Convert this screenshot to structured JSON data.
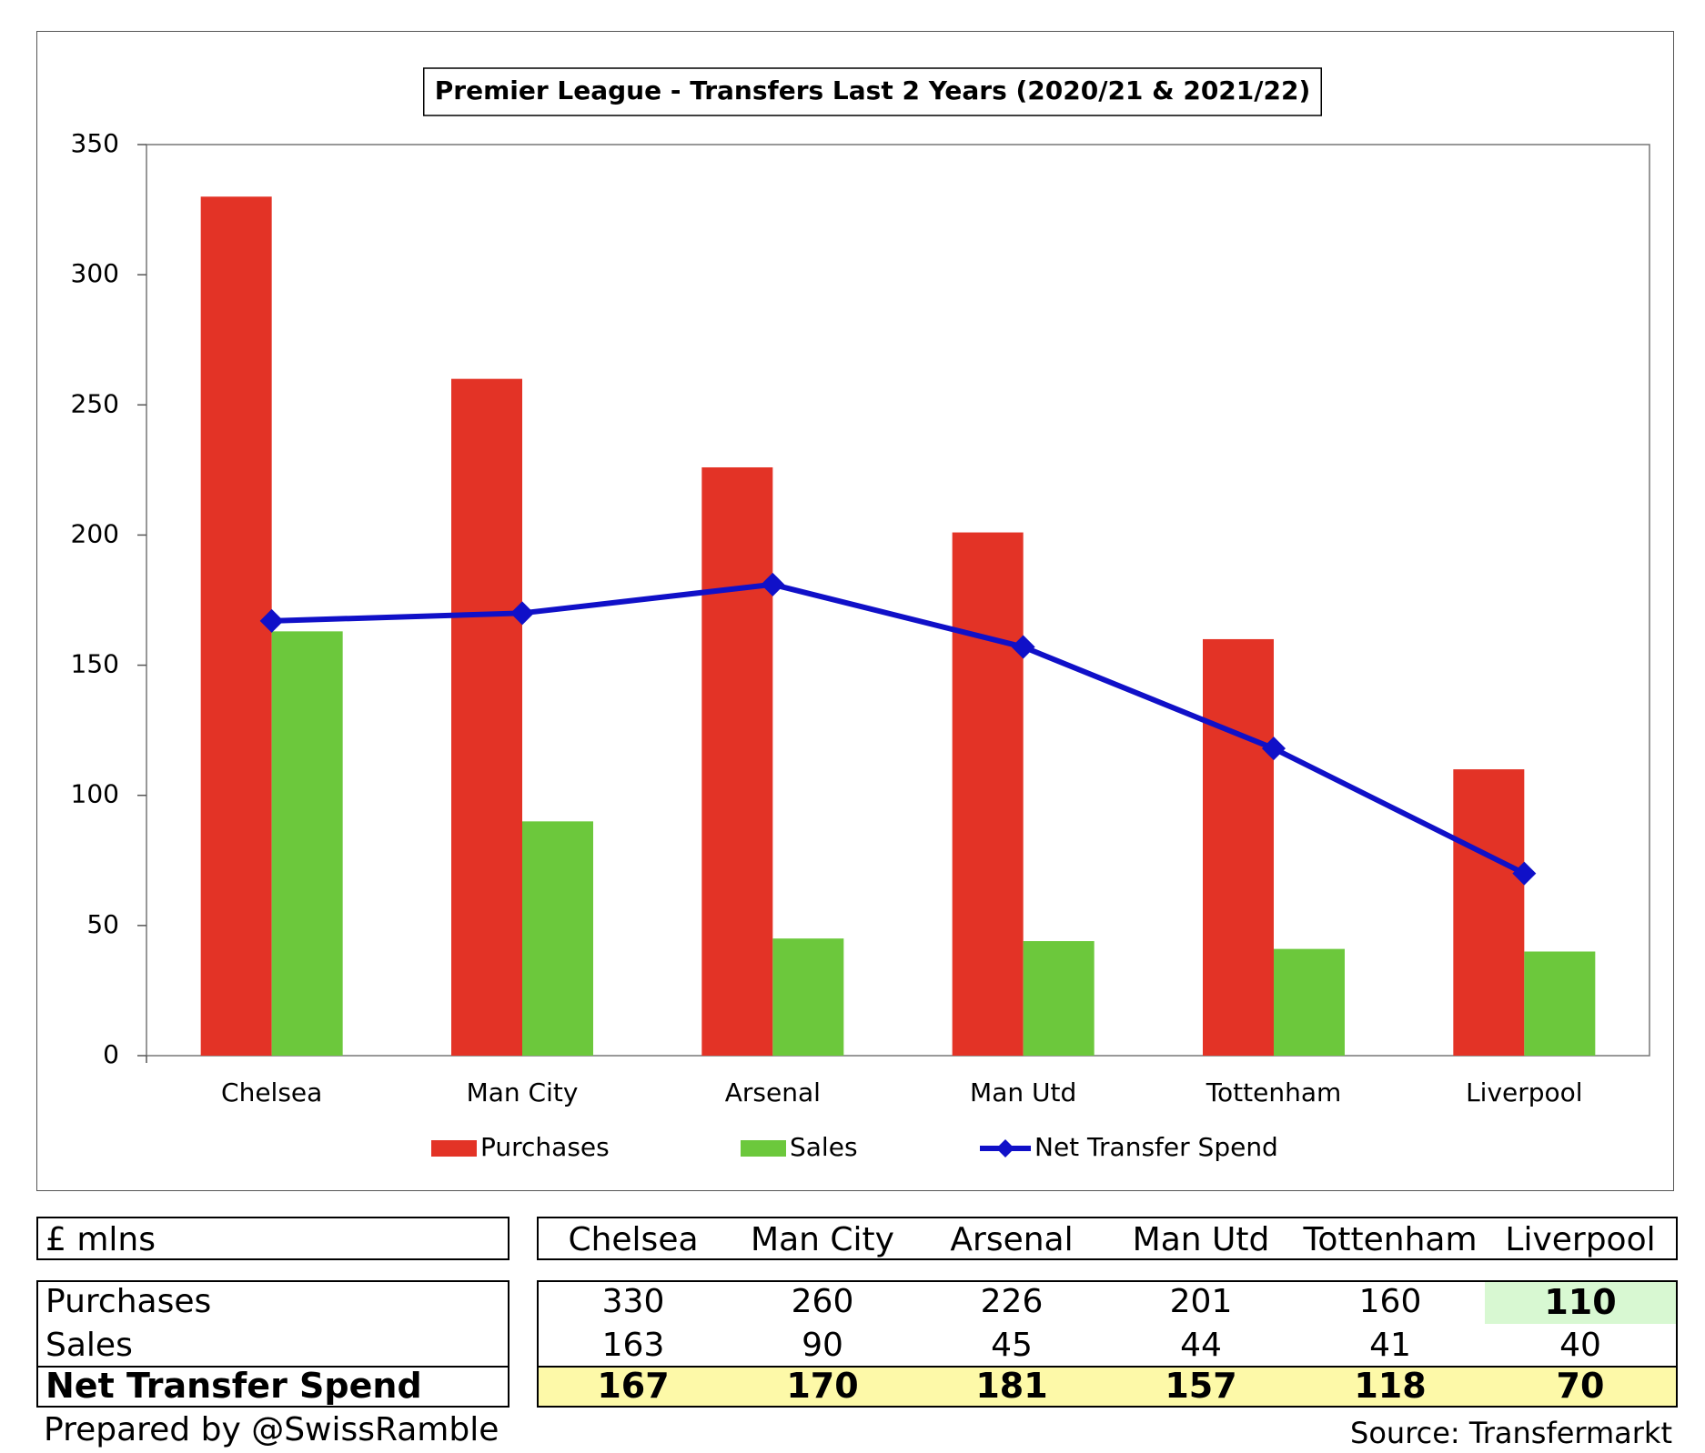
{
  "chart_data": {
    "type": "bar",
    "title": "Premier League - Transfers Last 2 Years (2020/21 & 2021/22)",
    "categories": [
      "Chelsea",
      "Man City",
      "Arsenal",
      "Man Utd",
      "Tottenham",
      "Liverpool"
    ],
    "series": [
      {
        "name": "Purchases",
        "type": "bar",
        "color": "#e33326",
        "values": [
          330,
          260,
          226,
          201,
          160,
          110
        ]
      },
      {
        "name": "Sales",
        "type": "bar",
        "color": "#6cc83c",
        "values": [
          163,
          90,
          45,
          44,
          41,
          40
        ]
      },
      {
        "name": "Net Transfer Spend",
        "type": "line",
        "marker": "diamond",
        "color": "#1010c8",
        "values": [
          167,
          170,
          181,
          157,
          118,
          70
        ]
      }
    ],
    "ylim": [
      0,
      350
    ],
    "yticks": [
      "0",
      "50",
      "100",
      "150",
      "200",
      "250",
      "300",
      "350"
    ],
    "grid": false,
    "legend": "bottom"
  },
  "table": {
    "unit_label": "£ mlns",
    "columns": [
      "Chelsea",
      "Man City",
      "Arsenal",
      "Man Utd",
      "Tottenham",
      "Liverpool"
    ],
    "rows": [
      {
        "label": "Purchases",
        "values": [
          "330",
          "260",
          "226",
          "201",
          "160",
          "110"
        ]
      },
      {
        "label": "Sales",
        "values": [
          "163",
          "90",
          "45",
          "44",
          "41",
          "40"
        ]
      },
      {
        "label": "Net Transfer Spend",
        "values": [
          "167",
          "170",
          "181",
          "157",
          "118",
          "70"
        ]
      }
    ],
    "highlight_color": "#d8f8d2",
    "net_row_color": "#fdf9a8"
  },
  "footer": {
    "prepared_by": "Prepared by @SwissRamble",
    "source": "Source: Transfermarkt"
  }
}
